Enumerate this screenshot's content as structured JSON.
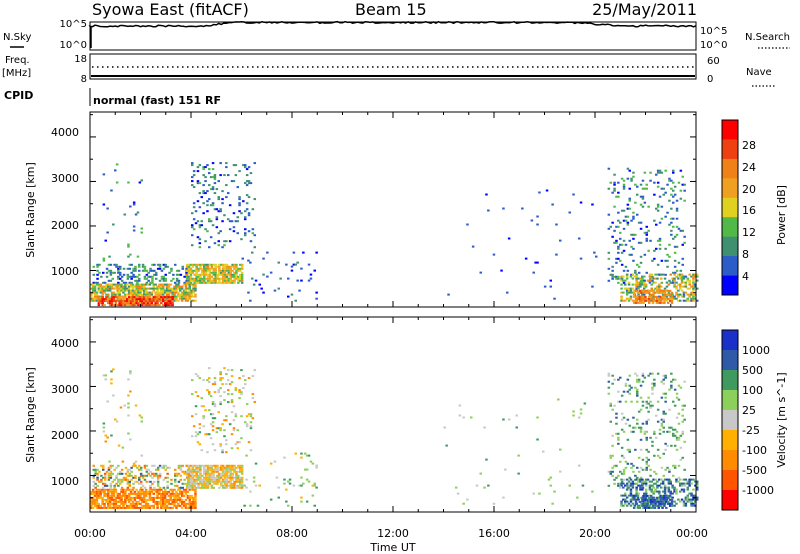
{
  "header": {
    "title": "Syowa East (fitACF)",
    "beam": "Beam 15",
    "date": "25/May/2011"
  },
  "top_panels": {
    "nsky_label": "N.Sky",
    "nsky_ticks": [
      "10^5",
      "10^0"
    ],
    "nsearch_label": "N.Search",
    "nsearch_ticks": [
      "10^5",
      "10^0"
    ],
    "freq_label_1": "Freq.",
    "freq_label_2": "[MHz]",
    "freq_ticks": [
      "18",
      "8"
    ],
    "nave_label": "Nave",
    "nave_ticks": [
      "60",
      "0"
    ],
    "cpid_label": "CPID",
    "cpid_value": "normal (fast) 151 RF"
  },
  "colors": {
    "power": [
      "#0000ff",
      "#2b5cc8",
      "#3f9070",
      "#52b848",
      "#e0d020",
      "#f0a020",
      "#f08018",
      "#ee4010",
      "#ff0000"
    ],
    "velocity": [
      "#ff0000",
      "#ff5500",
      "#ff8c00",
      "#ffb000",
      "#c8c8c8",
      "#8ccf5a",
      "#3e9a5e",
      "#2e5aa8",
      "#1a30c8"
    ]
  },
  "chart_data": [
    {
      "type": "heatmap",
      "name": "power",
      "ylabel": "Slant Range [km]",
      "yticks": [
        "4000",
        "3000",
        "2000",
        "1000"
      ],
      "ylim": [
        180,
        4560
      ],
      "colorbar_label": "Power [dB]",
      "colorbar_ticks": [
        "28",
        "24",
        "20",
        "16",
        "12",
        "8",
        "4"
      ],
      "clim": [
        0,
        32
      ],
      "regions": [
        {
          "t": [
            0.1,
            4.0
          ],
          "r": [
            700,
            1150
          ],
          "v": [
            2,
            14
          ],
          "d": 0.35
        },
        {
          "t": [
            0.0,
            4.2
          ],
          "r": [
            300,
            700
          ],
          "v": [
            8,
            24
          ],
          "d": 0.75
        },
        {
          "t": [
            0.3,
            3.3
          ],
          "r": [
            200,
            420
          ],
          "v": [
            20,
            32
          ],
          "d": 0.85
        },
        {
          "t": [
            3.8,
            6.0
          ],
          "r": [
            700,
            1150
          ],
          "v": [
            10,
            22
          ],
          "d": 0.8
        },
        {
          "t": [
            4.0,
            6.5
          ],
          "r": [
            1500,
            3400
          ],
          "v": [
            2,
            12
          ],
          "d": 0.12
        },
        {
          "t": [
            0.5,
            2.0
          ],
          "r": [
            1200,
            3400
          ],
          "v": [
            2,
            14
          ],
          "d": 0.04
        },
        {
          "t": [
            6.0,
            9.0
          ],
          "r": [
            300,
            1500
          ],
          "v": [
            2,
            8
          ],
          "d": 0.04
        },
        {
          "t": [
            20.5,
            23.5
          ],
          "r": [
            700,
            3300
          ],
          "v": [
            2,
            14
          ],
          "d": 0.12
        },
        {
          "t": [
            21.0,
            24.0
          ],
          "r": [
            300,
            900
          ],
          "v": [
            6,
            22
          ],
          "d": 0.45
        },
        {
          "t": [
            21.5,
            23.0
          ],
          "r": [
            250,
            550
          ],
          "v": [
            18,
            26
          ],
          "d": 0.7
        },
        {
          "t": [
            14.0,
            20.0
          ],
          "r": [
            300,
            2800
          ],
          "v": [
            2,
            6
          ],
          "d": 0.01
        }
      ]
    },
    {
      "type": "heatmap",
      "name": "velocity",
      "ylabel": "Slant Range [km]",
      "yticks": [
        "4000",
        "3000",
        "2000",
        "1000"
      ],
      "ylim": [
        180,
        4560
      ],
      "xlabel": "Time UT",
      "xticks": [
        "00:00",
        "04:00",
        "08:00",
        "12:00",
        "16:00",
        "20:00",
        "00:00"
      ],
      "xlim": [
        0,
        24
      ],
      "colorbar_label": "Velocity [m s^-1]",
      "colorbar_ticks": [
        "1000",
        "500",
        "100",
        "25",
        "-25",
        "-100",
        "-500",
        "-1000"
      ],
      "regions": [
        {
          "t": [
            0.0,
            4.2
          ],
          "r": [
            250,
            700
          ],
          "v": [
            1,
            3
          ],
          "d": 0.75
        },
        {
          "t": [
            0.1,
            4.0
          ],
          "r": [
            700,
            1200
          ],
          "v": [
            1,
            7
          ],
          "d": 0.35
        },
        {
          "t": [
            3.8,
            6.0
          ],
          "r": [
            700,
            1200
          ],
          "v": [
            2,
            5
          ],
          "d": 0.8
        },
        {
          "t": [
            4.0,
            6.5
          ],
          "r": [
            1500,
            3400
          ],
          "v": [
            2,
            6
          ],
          "d": 0.12
        },
        {
          "t": [
            0.5,
            2.0
          ],
          "r": [
            1200,
            3400
          ],
          "v": [
            2,
            6
          ],
          "d": 0.04
        },
        {
          "t": [
            6.0,
            9.0
          ],
          "r": [
            300,
            1500
          ],
          "v": [
            3,
            6
          ],
          "d": 0.04
        },
        {
          "t": [
            20.5,
            23.5
          ],
          "r": [
            700,
            3300
          ],
          "v": [
            4,
            7
          ],
          "d": 0.12
        },
        {
          "t": [
            21.0,
            24.0
          ],
          "r": [
            300,
            900
          ],
          "v": [
            5,
            8
          ],
          "d": 0.45
        },
        {
          "t": [
            21.5,
            23.0
          ],
          "r": [
            250,
            550
          ],
          "v": [
            6,
            8
          ],
          "d": 0.7
        },
        {
          "t": [
            14.0,
            20.0
          ],
          "r": [
            300,
            2800
          ],
          "v": [
            4,
            6
          ],
          "d": 0.01
        }
      ]
    }
  ]
}
